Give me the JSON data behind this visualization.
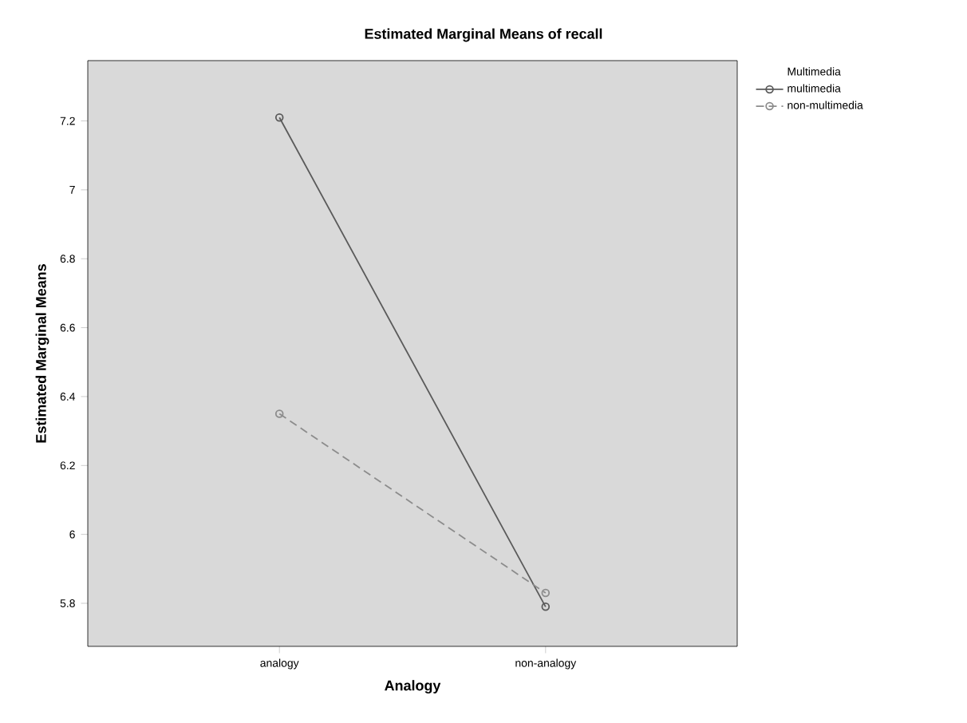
{
  "chart_data": {
    "type": "line",
    "title": "Estimated Marginal Means of recall",
    "xlabel": "Analogy",
    "ylabel": "Estimated Marginal Means",
    "legend_title": "Multimedia",
    "categories": [
      "analogy",
      "non-analogy"
    ],
    "series": [
      {
        "name": "multimedia",
        "color": "#5a5a5a",
        "line_style": "solid",
        "values": [
          7.21,
          5.79
        ]
      },
      {
        "name": "non-multimedia",
        "color": "#8c8c8c",
        "line_style": "dashed",
        "values": [
          6.35,
          5.83
        ]
      }
    ],
    "ylim": [
      5.675,
      7.375
    ],
    "yticks": [
      5.8,
      6,
      6.2,
      6.4,
      6.6,
      6.8,
      7,
      7.2
    ],
    "marker": "circle",
    "legend": "top right",
    "grid": false
  }
}
